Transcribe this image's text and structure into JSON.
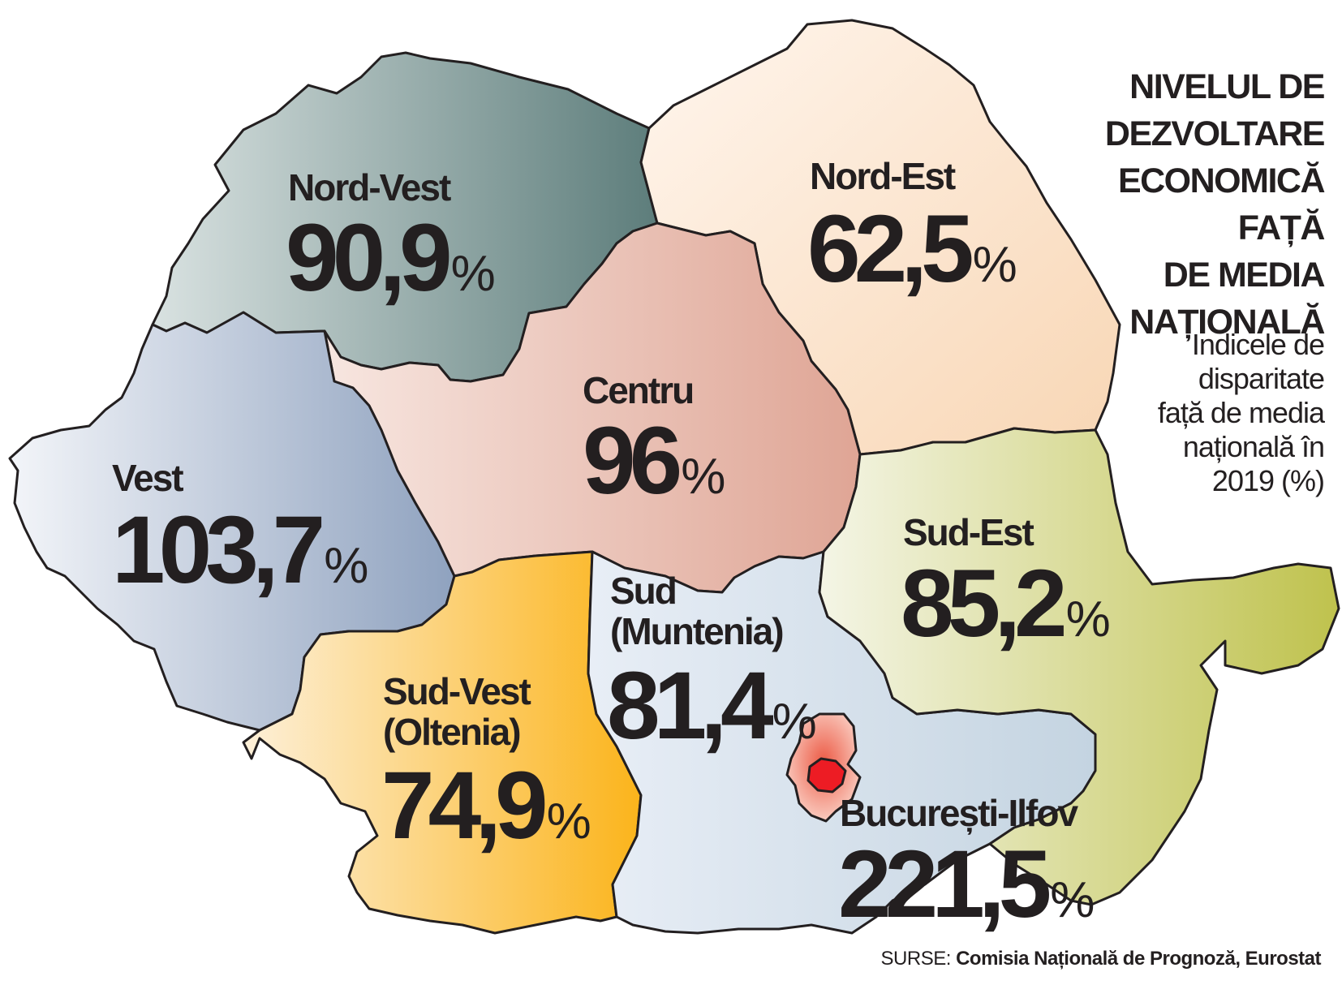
{
  "title_lines": [
    "NIVELUL DE",
    "DEZVOLTARE",
    "ECONOMICĂ FAȚĂ",
    "DE MEDIA",
    "NAȚIONALĂ"
  ],
  "subtitle_lines": [
    "Indicele de",
    "disparitate",
    "față de media",
    "națională în",
    "2019 (%)"
  ],
  "source": {
    "label": "SURSE:",
    "text": "Comisia Națională de Prognoză, Eurostat"
  },
  "percent_sign": "%",
  "colors": {
    "outline": "#231f20",
    "nord_vest": [
      "#d9e2e1",
      "#5d7d7b"
    ],
    "nord_est": [
      "#fff6ee",
      "#f8d6b4"
    ],
    "centru": [
      "#f7e6e0",
      "#dfa595"
    ],
    "vest": [
      "#f3f5f9",
      "#8fa2bf"
    ],
    "sud_est": [
      "#f4f5e6",
      "#bfc24d"
    ],
    "sud_vest": [
      "#fdf0d9",
      "#fbb41b"
    ],
    "sud_muntenia": [
      "#e8eef6",
      "#c4d4e1"
    ],
    "ilfov": [
      "#fbd6cb",
      "#ec5a45"
    ],
    "bucuresti": "#ed1c24"
  },
  "regions": [
    {
      "id": "nord-vest",
      "name_lines": [
        "Nord-Vest"
      ],
      "value": "90,9"
    },
    {
      "id": "nord-est",
      "name_lines": [
        "Nord-Est"
      ],
      "value": "62,5"
    },
    {
      "id": "centru",
      "name_lines": [
        "Centru"
      ],
      "value": "96"
    },
    {
      "id": "vest",
      "name_lines": [
        "Vest"
      ],
      "value": "103,7"
    },
    {
      "id": "sud-est",
      "name_lines": [
        "Sud-Est"
      ],
      "value": "85,2"
    },
    {
      "id": "sud-muntenia",
      "name_lines": [
        "Sud",
        "(Muntenia)"
      ],
      "value": "81,4"
    },
    {
      "id": "sud-vest-oltenia",
      "name_lines": [
        "Sud-Vest",
        "(Oltenia)"
      ],
      "value": "74,9"
    },
    {
      "id": "bucuresti-ilfov",
      "name_lines": [
        "București-Ilfov"
      ],
      "value": "221,5"
    }
  ]
}
